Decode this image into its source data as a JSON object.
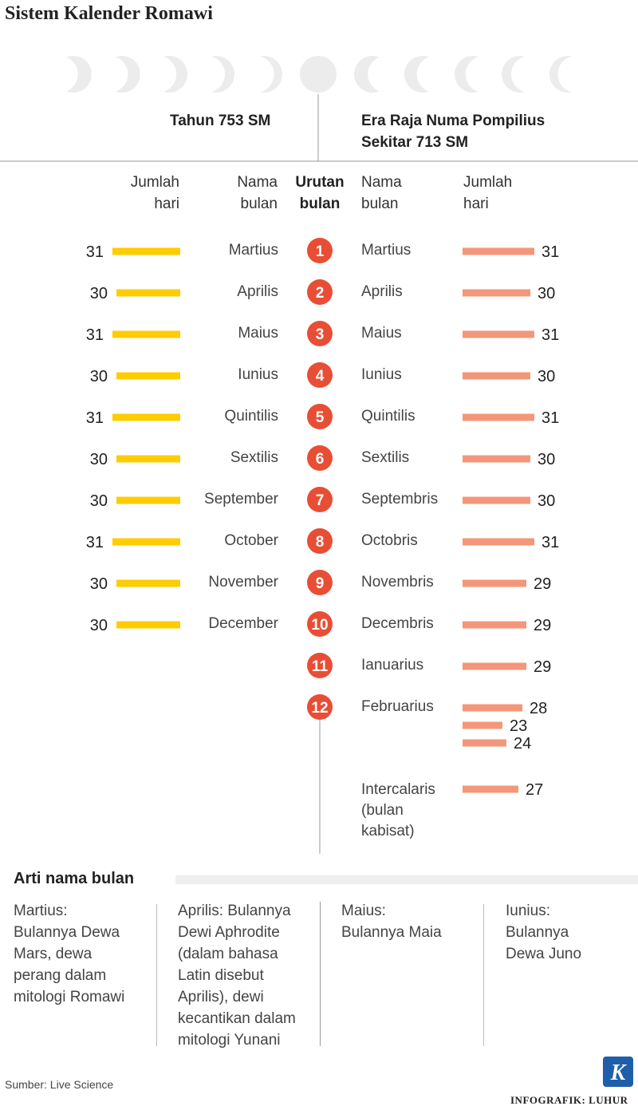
{
  "title": "Sistem Kalender Romawi",
  "colors": {
    "yellow": "#FFCC00",
    "salmon": "#F4967A",
    "red": "#E84E35",
    "moon": "#ECECEC"
  },
  "left_header": "Tahun 753 SM",
  "right_header_line1": "Era Raja Numa Pompilius",
  "right_header_line2": "Sekitar 713 SM",
  "col_headers": {
    "left_days": [
      "Jumlah",
      "hari"
    ],
    "left_name": [
      "Nama",
      "bulan"
    ],
    "order": [
      "Urutan",
      "bulan"
    ],
    "right_name": [
      "Nama",
      "bulan"
    ],
    "right_days": [
      "Jumlah",
      "hari"
    ]
  },
  "chart_data": [
    {
      "type": "bar",
      "title": "Tahun 753 SM",
      "categories": [
        "Martius",
        "Aprilis",
        "Maius",
        "Iunius",
        "Quintilis",
        "Sextilis",
        "September",
        "October",
        "November",
        "December"
      ],
      "values": [
        31,
        30,
        31,
        30,
        31,
        30,
        30,
        31,
        30,
        30
      ],
      "xlabel": "",
      "ylabel": "",
      "color": "#FFCC00"
    },
    {
      "type": "bar",
      "title": "Era Raja Numa Pompilius Sekitar 713 SM",
      "categories": [
        "Martius",
        "Aprilis",
        "Maius",
        "Iunius",
        "Quintilis",
        "Sextilis",
        "Septembris",
        "Octobris",
        "Novembris",
        "Decembris",
        "Ianuarius",
        "Februarius",
        "Intercalaris (bulan kabisat)"
      ],
      "values": [
        31,
        30,
        31,
        30,
        31,
        30,
        30,
        31,
        29,
        29,
        29,
        [
          28,
          23,
          24
        ],
        27
      ],
      "xlabel": "",
      "ylabel": "",
      "color": "#F4967A"
    }
  ],
  "intercalaris_label": [
    "Intercalaris",
    "(bulan",
    "kabisat)"
  ],
  "order_numbers": [
    "1",
    "2",
    "3",
    "4",
    "5",
    "6",
    "7",
    "8",
    "9",
    "10",
    "11",
    "12"
  ],
  "notes": {
    "title": "Arti nama bulan",
    "items": [
      {
        "lines": [
          "Martius:",
          "Bulannya Dewa",
          "Mars, dewa",
          "perang dalam",
          "mitologi Romawi"
        ]
      },
      {
        "lines": [
          "Aprilis: Bulannya",
          "Dewi Aphrodite",
          "(dalam bahasa",
          "Latin disebut",
          "Aprilis), dewi",
          "kecantikan dalam",
          "mitologi Yunani"
        ]
      },
      {
        "lines": [
          "Maius:",
          "Bulannya Maia"
        ]
      },
      {
        "lines": [
          "Iunius:",
          "Bulannya",
          "Dewa Juno"
        ]
      }
    ]
  },
  "source": "Sumber: Live Science",
  "credit": "INFOGRAFIK: LUHUR",
  "logo_letter": "K"
}
